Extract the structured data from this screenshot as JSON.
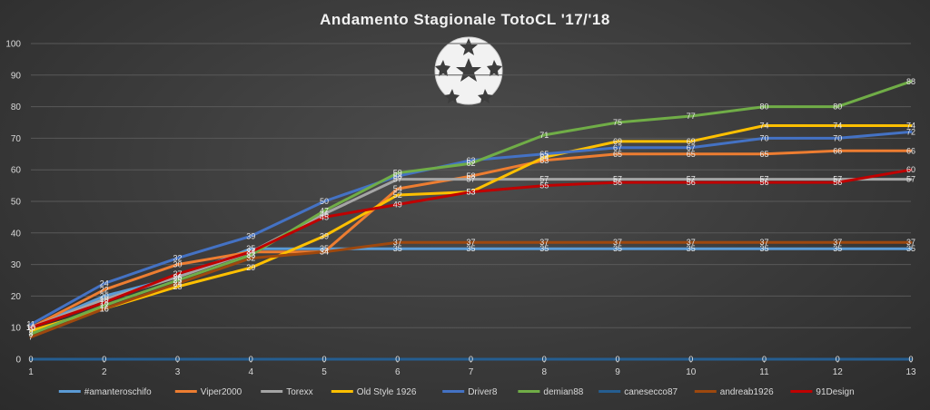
{
  "chart_data": {
    "type": "line",
    "title": "Andamento Stagionale TotoCL '17/'18",
    "x": [
      1,
      2,
      3,
      4,
      5,
      6,
      7,
      8,
      9,
      10,
      11,
      12,
      13
    ],
    "ylim": [
      0,
      100
    ],
    "yticks": [
      0,
      10,
      20,
      30,
      40,
      50,
      60,
      70,
      80,
      90,
      100
    ],
    "grid": true,
    "legend_position": "bottom",
    "logo": "champions-league-starball-logo",
    "series": [
      {
        "name": "#amanteroschifo",
        "color": "#5b9bd5",
        "values": [
          10,
          20,
          26,
          35,
          35,
          35,
          35,
          35,
          35,
          35,
          35,
          35,
          35
        ]
      },
      {
        "name": "Viper2000",
        "color": "#ed7d31",
        "values": [
          10,
          22,
          30,
          34,
          34,
          54,
          58,
          63,
          65,
          65,
          65,
          66,
          66
        ]
      },
      {
        "name": "Torexx",
        "color": "#a5a5a5",
        "values": [
          10,
          19,
          26,
          34,
          46,
          57,
          57,
          57,
          57,
          57,
          57,
          57,
          57
        ]
      },
      {
        "name": "Old Style 1926",
        "color": "#ffc000",
        "values": [
          9,
          16,
          23,
          29,
          39,
          52,
          53,
          64,
          69,
          69,
          74,
          74,
          74
        ]
      },
      {
        "name": "Driver8",
        "color": "#4472c4",
        "values": [
          11,
          24,
          32,
          39,
          50,
          58,
          63,
          65,
          67,
          67,
          70,
          70,
          72
        ]
      },
      {
        "name": "demian88",
        "color": "#70ad47",
        "values": [
          8,
          17,
          25,
          33,
          47,
          59,
          62,
          71,
          75,
          77,
          80,
          80,
          88
        ]
      },
      {
        "name": "canesecco87",
        "color": "#255e91",
        "values": [
          0,
          0,
          0,
          0,
          0,
          0,
          0,
          0,
          0,
          0,
          0,
          0,
          0
        ]
      },
      {
        "name": "andreab1926",
        "color": "#9e480e",
        "values": [
          7,
          16,
          24,
          32,
          34,
          37,
          37,
          37,
          37,
          37,
          37,
          37,
          37
        ]
      },
      {
        "name": "91Design",
        "color": "#c00000",
        "values": [
          10,
          18,
          27,
          34,
          45,
          49,
          53,
          55,
          56,
          56,
          56,
          56,
          60
        ]
      }
    ]
  }
}
